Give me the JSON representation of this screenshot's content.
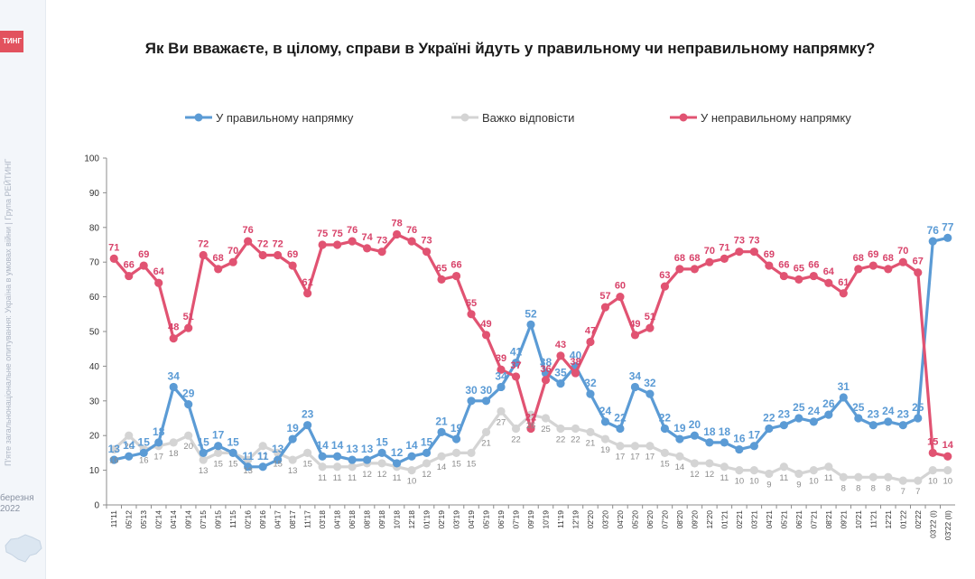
{
  "brand": "ТИНГ",
  "sidebar": {
    "vertical_text": "П'яте загальнонаціональне опитування: Україна в умовах війни | Група РЕЙТИНГ",
    "date": "березня 2022"
  },
  "chart_data": {
    "type": "line",
    "title": "Як Ви вважаєте, в цілому, справи в Україні йдуть у правильному чи неправильному напрямку?",
    "ylim": [
      0,
      100
    ],
    "yticks": [
      0,
      10,
      20,
      30,
      40,
      50,
      60,
      70,
      80,
      90,
      100
    ],
    "grid": false,
    "legend_position": "top",
    "x": [
      "11'11",
      "05'12",
      "05'13",
      "02'14",
      "04'14",
      "09'14",
      "07'15",
      "09'15",
      "11'15",
      "02'16",
      "09'16",
      "04'17",
      "08'17",
      "11'17",
      "03'18",
      "04'18",
      "06'18",
      "08'18",
      "09'18",
      "10'18",
      "12'18",
      "01'19",
      "02'19",
      "03'19",
      "04'19",
      "05'19",
      "06'19",
      "07'19",
      "09'19",
      "10'19",
      "11'19",
      "12'19",
      "02'20",
      "03'20",
      "04'20",
      "05'20",
      "06'20",
      "07'20",
      "08'20",
      "09'20",
      "12'20",
      "01'21",
      "02'21",
      "03'21",
      "04'21",
      "05'21",
      "06'21",
      "07'21",
      "08'21",
      "09'21",
      "10'21",
      "11'21",
      "12'21",
      "01'22",
      "02'22",
      "03'22 (I)",
      "03'22 (II)"
    ],
    "series": [
      {
        "name": "У правильному напрямку",
        "color": "#5b9bd5",
        "values": [
          13,
          14,
          15,
          18,
          34,
          29,
          15,
          17,
          15,
          11,
          11,
          13,
          19,
          23,
          14,
          14,
          13,
          13,
          15,
          12,
          14,
          15,
          21,
          19,
          30,
          30,
          34,
          41,
          52,
          38,
          35,
          40,
          32,
          24,
          22,
          34,
          32,
          22,
          19,
          20,
          18,
          18,
          16,
          17,
          22,
          23,
          25,
          24,
          26,
          31,
          25,
          23,
          24,
          23,
          25,
          76,
          77
        ]
      },
      {
        "name": "Важко відповісти",
        "color": "#d4d4d4",
        "values": [
          16,
          20,
          16,
          17,
          18,
          20,
          13,
          15,
          15,
          13,
          17,
          15,
          13,
          15,
          11,
          11,
          11,
          12,
          12,
          11,
          10,
          12,
          14,
          15,
          15,
          21,
          27,
          22,
          26,
          25,
          22,
          22,
          21,
          19,
          17,
          17,
          17,
          15,
          14,
          12,
          12,
          11,
          10,
          10,
          9,
          11,
          9,
          10,
          11,
          8,
          8,
          8,
          8,
          7,
          7,
          10,
          10
        ]
      },
      {
        "name": "У неправильному напрямку",
        "color": "#e15372",
        "values": [
          71,
          66,
          69,
          64,
          48,
          51,
          72,
          68,
          70,
          76,
          72,
          72,
          69,
          61,
          75,
          75,
          76,
          74,
          73,
          78,
          76,
          73,
          65,
          66,
          55,
          49,
          39,
          37,
          22,
          36,
          43,
          38,
          47,
          57,
          60,
          49,
          51,
          63,
          68,
          68,
          70,
          71,
          73,
          73,
          69,
          66,
          65,
          66,
          64,
          61,
          68,
          69,
          68,
          70,
          67,
          15,
          14
        ]
      }
    ]
  }
}
